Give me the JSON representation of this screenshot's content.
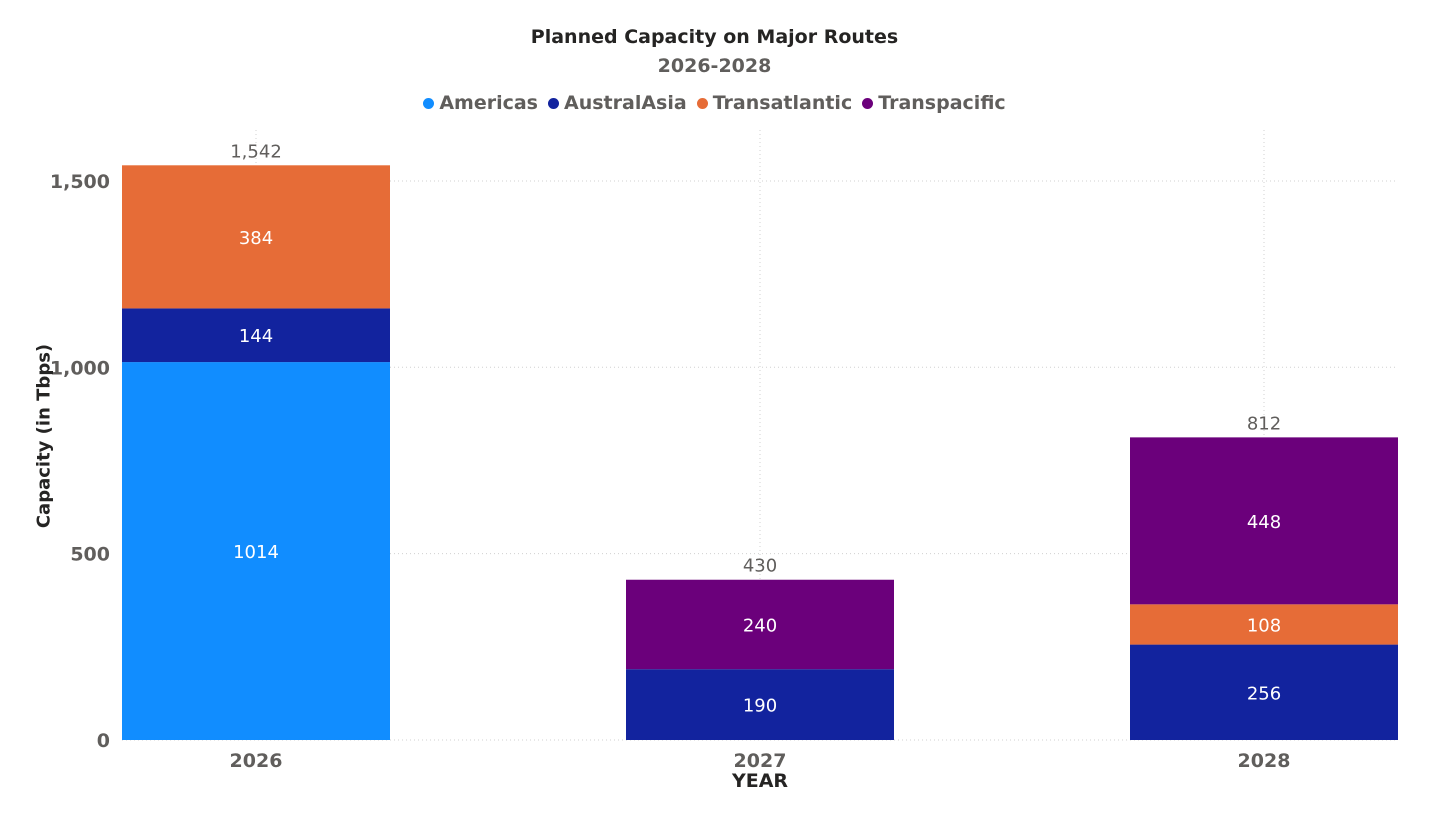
{
  "chart_data": {
    "type": "bar",
    "stacked": true,
    "title": "Planned Capacity on Major Routes",
    "subtitle": "2026-2028",
    "xlabel": "YEAR",
    "ylabel": "Capacity (in Tbps)",
    "ylim": [
      0,
      1550
    ],
    "yticks": [
      0,
      500,
      1000,
      1500
    ],
    "ytick_labels": [
      "0",
      "500",
      "1,000",
      "1,500"
    ],
    "grid": true,
    "legend_position": "top-center",
    "categories": [
      "2026",
      "2027",
      "2028"
    ],
    "totals": [
      1542,
      430,
      812
    ],
    "total_labels": [
      "1,542",
      "430",
      "812"
    ],
    "series": [
      {
        "name": "Americas",
        "color": "#118dff",
        "values": [
          1014,
          0,
          0
        ]
      },
      {
        "name": "AustralAsia",
        "color": "#12239e",
        "values": [
          144,
          190,
          256
        ]
      },
      {
        "name": "Transatlantic",
        "color": "#e66c37",
        "values": [
          384,
          0,
          108
        ]
      },
      {
        "name": "Transpacific",
        "color": "#6b007b",
        "values": [
          0,
          240,
          448
        ]
      }
    ]
  }
}
